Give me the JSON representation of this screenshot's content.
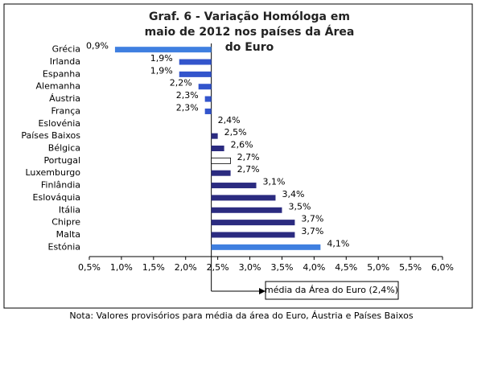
{
  "chart_data": {
    "type": "bar",
    "orientation": "horizontal",
    "title": "Graf. 6 - Variação Homóloga em maio de 2012 nos países da Área do Euro",
    "categories": [
      "Grécia",
      "Irlanda",
      "Espanha",
      "Alemanha",
      "Áustria",
      "França",
      "Eslovénia",
      "Países Baixos",
      "Bélgica",
      "Portugal",
      "Luxemburgo",
      "Finlândia",
      "Eslováquia",
      "Itália",
      "Chipre",
      "Malta",
      "Estónia"
    ],
    "values": [
      0.9,
      1.9,
      1.9,
      2.2,
      2.3,
      2.3,
      2.4,
      2.5,
      2.6,
      2.7,
      2.7,
      3.1,
      3.4,
      3.5,
      3.7,
      3.7,
      4.1
    ],
    "value_labels": [
      "0,9%",
      "1,9%",
      "1,9%",
      "2,2%",
      "2,3%",
      "2,3%",
      "2,4%",
      "2,5%",
      "2,6%",
      "2,7%",
      "2,7%",
      "3,1%",
      "3,4%",
      "3,5%",
      "3,7%",
      "3,7%",
      "4,1%"
    ],
    "colors": [
      "#3f7fe0",
      "#3355cc",
      "#3355cc",
      "#3355cc",
      "#3355cc",
      "#3355cc",
      "#2b2b80",
      "#2b2b80",
      "#2b2b80",
      "#ffffff",
      "#2b2b80",
      "#2b2b80",
      "#2b2b80",
      "#2b2b80",
      "#2b2b80",
      "#2b2b80",
      "#3f7fe0"
    ],
    "xlim": [
      0.5,
      6.0
    ],
    "xticks": [
      {
        "value": 0.5,
        "label": "0,5%"
      },
      {
        "value": 1.0,
        "label": "1,0%"
      },
      {
        "value": 1.5,
        "label": "1,5%"
      },
      {
        "value": 2.0,
        "label": "2,0%"
      },
      {
        "value": 2.5,
        "label": "2,5%"
      },
      {
        "value": 3.0,
        "label": "3,0%"
      },
      {
        "value": 3.5,
        "label": "3,5%"
      },
      {
        "value": 4.0,
        "label": "4,0%"
      },
      {
        "value": 4.5,
        "label": "4,5%"
      },
      {
        "value": 5.0,
        "label": "5,0%"
      },
      {
        "value": 5.5,
        "label": "5,5%"
      },
      {
        "value": 6.0,
        "label": "6,0%"
      }
    ],
    "reference": {
      "value": 2.4,
      "label": "média da Área do Euro (2,4%)"
    },
    "note": "Nota: Valores provisórios para média da área do Euro, Áustria e Países Baixos"
  }
}
